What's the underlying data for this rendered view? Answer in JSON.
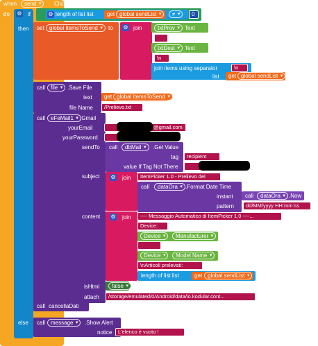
{
  "when": {
    "label": "when",
    "component": "send",
    "event": "Click",
    "do": "do"
  },
  "if_block": {
    "label": "if",
    "then": "then",
    "else": "else",
    "length_label": "length of list list",
    "get": "get",
    "var": "global sendList",
    "op": "≠",
    "num": "0"
  },
  "set_block": {
    "set": "set",
    "var": "global itemsToSend",
    "to": "to",
    "join": "join",
    "txtProv": "txtProv",
    "text": "Text",
    "sep1": " ",
    "txtDest": "txtDest",
    "text2": "Text",
    "newline": "\\n",
    "join_sep_label": "join items using separator",
    "sep_val": "\\n",
    "list_label": "list",
    "get": "get",
    "list_var": "global sendList"
  },
  "file_block": {
    "call": "call",
    "component": "file",
    "method": ".Save File",
    "text_label": "text",
    "get": "get",
    "text_var": "global itemsToSend",
    "fname_label": "file Name",
    "fname": "/Prelievo.txt"
  },
  "mail_block": {
    "call": "call",
    "component": "eFeMail1",
    "method": ".Gmail",
    "your_email": "yourEmail",
    "email_suffix": "@gmail.com",
    "your_password": "yourPassword",
    "send_to": "sendTo",
    "call2": "call",
    "db": "dbMail",
    "get_value": ".Get Value",
    "tag_label": "tag",
    "tag_val": "recipient",
    "ifnot": "value If Tag Not There",
    "subject": "subject",
    "join": "join",
    "subject_str": "ItemPicker 1.0 - Prelievo del",
    "call3": "call",
    "dataOra": "dataOra",
    "format": ".Format Date Time",
    "instant": "instant",
    "call4": "call",
    "dataOra2": "dataOra",
    "now": ".Now",
    "pattern": "pattern",
    "pattern_val": "dd/MM/yyyy HH:mm:ss",
    "content": "content",
    "join2": "join",
    "c1": "---- Messaggio Automatico di ItemPicker 1.0 ----...",
    "c2": "Device: ",
    "device1": "Device",
    "manufacturer": "Manufacturer",
    "c3": " ",
    "device2": "Device",
    "model": "Model Name",
    "c4": "\\nArticoli prelevati:",
    "length2": "length of list list",
    "get2": "get",
    "list_var2": "global sendList",
    "ishtml": "isHtml",
    "false_val": "false",
    "attach": "attach",
    "attach_val": "/storage/emulated/0/Android/data/io.kodular.cont..."
  },
  "cancel": {
    "call": "call",
    "label": "cancellaDati"
  },
  "else_block": {
    "call": "call",
    "component": "message",
    "method": ".Show Alert",
    "notice": "notice",
    "notice_val": "L'elenco è vuoto !"
  }
}
